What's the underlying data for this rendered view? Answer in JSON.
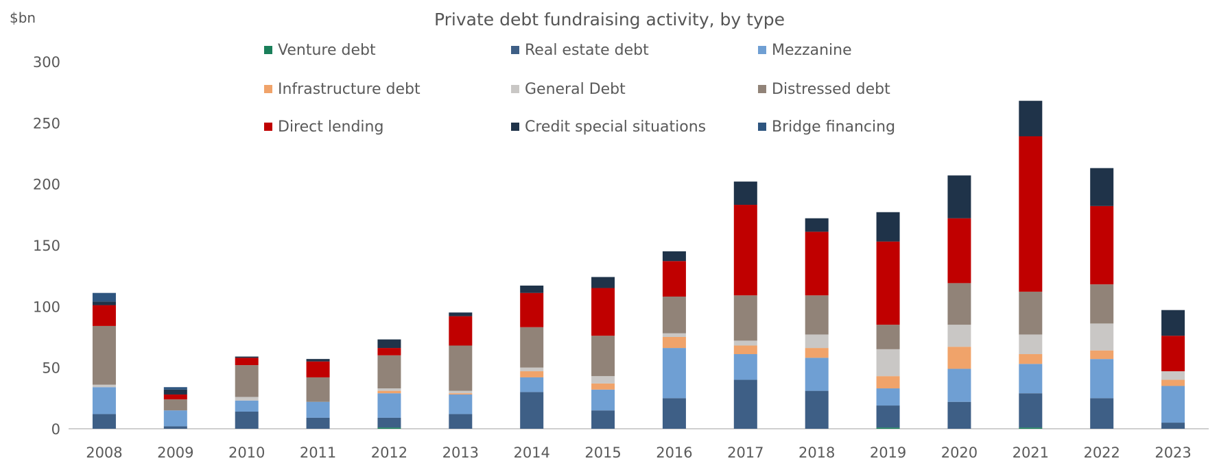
{
  "chart_data": {
    "type": "bar",
    "stacked": true,
    "title": "Private debt fundraising activity, by type",
    "ylabel": "$bn",
    "xlabel": "",
    "ylim": [
      0,
      300
    ],
    "yticks": [
      0,
      50,
      100,
      150,
      200,
      250,
      300
    ],
    "grid": false,
    "legend_position": "top",
    "categories": [
      "2008",
      "2009",
      "2010",
      "2011",
      "2012",
      "2013",
      "2014",
      "2015",
      "2016",
      "2017",
      "2018",
      "2019",
      "2020",
      "2021",
      "2022",
      "2023"
    ],
    "series": [
      {
        "name": "Venture debt",
        "color": "#1a7f5a",
        "values": [
          0,
          0,
          0,
          0,
          1,
          0,
          0,
          0,
          0,
          0,
          0,
          1,
          0,
          1,
          0,
          0
        ]
      },
      {
        "name": "Real estate debt",
        "color": "#3e5f86",
        "values": [
          12,
          2,
          14,
          9,
          8,
          12,
          30,
          15,
          25,
          40,
          31,
          18,
          22,
          28,
          25,
          5
        ]
      },
      {
        "name": "Mezzanine",
        "color": "#6f9fd3",
        "values": [
          22,
          13,
          9,
          13,
          20,
          16,
          12,
          17,
          41,
          21,
          27,
          14,
          27,
          24,
          32,
          30
        ]
      },
      {
        "name": "Infrastructure debt",
        "color": "#f0a36a",
        "values": [
          0,
          0,
          0,
          0,
          2,
          1,
          5,
          5,
          9,
          7,
          8,
          10,
          18,
          8,
          7,
          5
        ]
      },
      {
        "name": "General Debt",
        "color": "#c9c7c5",
        "values": [
          2,
          0,
          3,
          0,
          2,
          2,
          3,
          6,
          3,
          4,
          11,
          22,
          18,
          16,
          22,
          7
        ]
      },
      {
        "name": "Distressed debt",
        "color": "#918378",
        "values": [
          48,
          9,
          26,
          20,
          27,
          37,
          33,
          33,
          30,
          37,
          32,
          20,
          34,
          35,
          32,
          0
        ]
      },
      {
        "name": "Direct lending",
        "color": "#c00000",
        "values": [
          17,
          4,
          6,
          13,
          6,
          24,
          28,
          39,
          29,
          74,
          52,
          68,
          53,
          127,
          64,
          29
        ]
      },
      {
        "name": "Credit special situations",
        "color": "#1f3349",
        "values": [
          3,
          4,
          1,
          2,
          7,
          3,
          6,
          9,
          8,
          19,
          11,
          24,
          35,
          29,
          31,
          21
        ]
      },
      {
        "name": "Bridge financing",
        "color": "#2e557f",
        "values": [
          7,
          2,
          0,
          0,
          0,
          0,
          0,
          0,
          0,
          0,
          0,
          0,
          0,
          0,
          0,
          0
        ]
      }
    ]
  }
}
